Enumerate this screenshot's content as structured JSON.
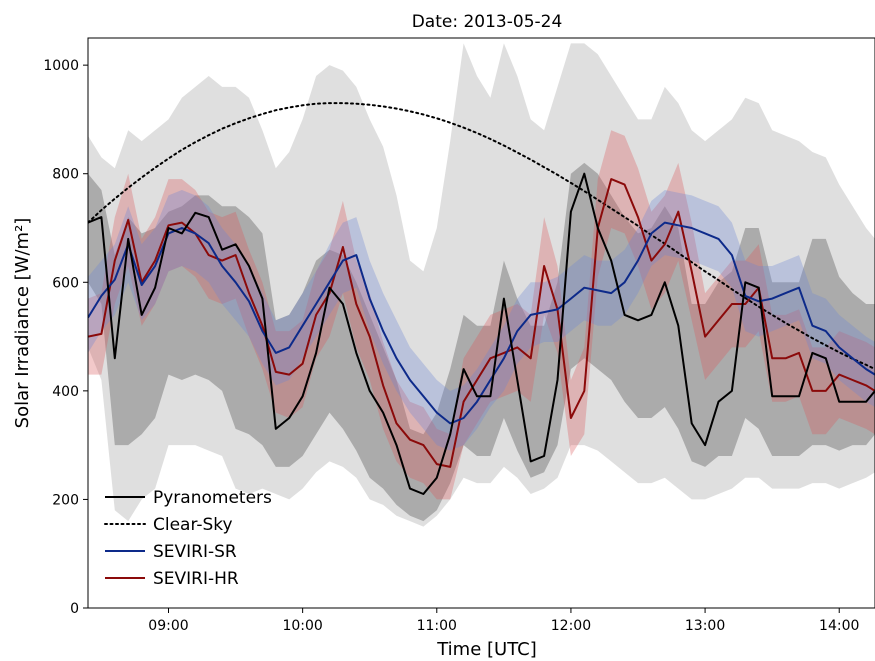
{
  "chart_data": {
    "type": "line",
    "title": "Date: 2013-05-24",
    "xlabel": "Time [UTC]",
    "ylabel": "Solar Irradiance [W/m²]",
    "xlim": [
      "08:24",
      "14:16"
    ],
    "ylim": [
      0,
      1050
    ],
    "x_ticks": [
      "09:00",
      "10:00",
      "11:00",
      "12:00",
      "13:00",
      "14:00"
    ],
    "y_ticks": [
      0,
      200,
      400,
      600,
      800,
      1000
    ],
    "legend_position": "lower-left",
    "x": [
      "08:24",
      "08:30",
      "08:36",
      "08:42",
      "08:48",
      "08:54",
      "09:00",
      "09:06",
      "09:12",
      "09:18",
      "09:24",
      "09:30",
      "09:36",
      "09:42",
      "09:48",
      "09:54",
      "10:00",
      "10:06",
      "10:12",
      "10:18",
      "10:24",
      "10:30",
      "10:36",
      "10:42",
      "10:48",
      "10:54",
      "11:00",
      "11:06",
      "11:12",
      "11:18",
      "11:24",
      "11:30",
      "11:36",
      "11:42",
      "11:48",
      "11:54",
      "12:00",
      "12:06",
      "12:12",
      "12:18",
      "12:24",
      "12:30",
      "12:36",
      "12:42",
      "12:48",
      "12:54",
      "13:00",
      "13:06",
      "13:12",
      "13:18",
      "13:24",
      "13:30",
      "13:36",
      "13:42",
      "13:48",
      "13:54",
      "14:00",
      "14:06",
      "14:12",
      "14:16"
    ],
    "series": [
      {
        "name": "Pyranometers",
        "style": "solid",
        "color": "#000000",
        "values": [
          710,
          720,
          460,
          680,
          540,
          590,
          700,
          690,
          728,
          720,
          660,
          670,
          630,
          570,
          330,
          350,
          390,
          470,
          590,
          560,
          470,
          400,
          360,
          300,
          220,
          210,
          240,
          320,
          440,
          390,
          390,
          570,
          420,
          270,
          280,
          420,
          730,
          800,
          700,
          640,
          540,
          530,
          540,
          600,
          520,
          340,
          300,
          380,
          400,
          600,
          590,
          390,
          390,
          390,
          470,
          460,
          380,
          380,
          380,
          400
        ],
        "band_inner": [
          [
            600,
            800
          ],
          [
            560,
            770
          ],
          [
            300,
            650
          ],
          [
            300,
            720
          ],
          [
            320,
            690
          ],
          [
            350,
            700
          ],
          [
            430,
            730
          ],
          [
            420,
            740
          ],
          [
            430,
            760
          ],
          [
            420,
            760
          ],
          [
            400,
            740
          ],
          [
            330,
            740
          ],
          [
            320,
            720
          ],
          [
            300,
            690
          ],
          [
            260,
            530
          ],
          [
            260,
            540
          ],
          [
            280,
            580
          ],
          [
            320,
            640
          ],
          [
            360,
            660
          ],
          [
            330,
            650
          ],
          [
            290,
            600
          ],
          [
            240,
            540
          ],
          [
            220,
            480
          ],
          [
            190,
            420
          ],
          [
            170,
            330
          ],
          [
            160,
            320
          ],
          [
            180,
            360
          ],
          [
            230,
            440
          ],
          [
            300,
            540
          ],
          [
            280,
            520
          ],
          [
            280,
            520
          ],
          [
            350,
            640
          ],
          [
            290,
            570
          ],
          [
            240,
            520
          ],
          [
            250,
            520
          ],
          [
            300,
            600
          ],
          [
            440,
            800
          ],
          [
            460,
            820
          ],
          [
            440,
            800
          ],
          [
            420,
            760
          ],
          [
            380,
            720
          ],
          [
            350,
            690
          ],
          [
            350,
            700
          ],
          [
            370,
            740
          ],
          [
            330,
            700
          ],
          [
            270,
            560
          ],
          [
            260,
            560
          ],
          [
            280,
            600
          ],
          [
            280,
            620
          ],
          [
            350,
            700
          ],
          [
            330,
            700
          ],
          [
            280,
            600
          ],
          [
            280,
            600
          ],
          [
            280,
            600
          ],
          [
            300,
            680
          ],
          [
            300,
            680
          ],
          [
            290,
            610
          ],
          [
            300,
            580
          ],
          [
            300,
            560
          ],
          [
            320,
            560
          ]
        ],
        "band_outer": [
          [
            480,
            870
          ],
          [
            420,
            830
          ],
          [
            180,
            810
          ],
          [
            160,
            880
          ],
          [
            200,
            860
          ],
          [
            220,
            880
          ],
          [
            300,
            900
          ],
          [
            300,
            940
          ],
          [
            300,
            960
          ],
          [
            290,
            980
          ],
          [
            280,
            960
          ],
          [
            220,
            960
          ],
          [
            210,
            940
          ],
          [
            220,
            880
          ],
          [
            210,
            810
          ],
          [
            200,
            840
          ],
          [
            220,
            900
          ],
          [
            250,
            980
          ],
          [
            270,
            1000
          ],
          [
            260,
            990
          ],
          [
            240,
            960
          ],
          [
            200,
            900
          ],
          [
            190,
            850
          ],
          [
            170,
            760
          ],
          [
            160,
            640
          ],
          [
            150,
            620
          ],
          [
            170,
            700
          ],
          [
            200,
            860
          ],
          [
            240,
            1040
          ],
          [
            230,
            980
          ],
          [
            230,
            940
          ],
          [
            260,
            1040
          ],
          [
            240,
            980
          ],
          [
            210,
            900
          ],
          [
            220,
            880
          ],
          [
            240,
            960
          ],
          [
            300,
            1040
          ],
          [
            300,
            1040
          ],
          [
            290,
            1020
          ],
          [
            270,
            980
          ],
          [
            250,
            940
          ],
          [
            230,
            900
          ],
          [
            230,
            900
          ],
          [
            240,
            960
          ],
          [
            220,
            930
          ],
          [
            200,
            880
          ],
          [
            200,
            860
          ],
          [
            210,
            880
          ],
          [
            220,
            900
          ],
          [
            240,
            940
          ],
          [
            240,
            930
          ],
          [
            220,
            880
          ],
          [
            220,
            870
          ],
          [
            220,
            860
          ],
          [
            230,
            840
          ],
          [
            230,
            830
          ],
          [
            220,
            780
          ],
          [
            230,
            740
          ],
          [
            240,
            700
          ],
          [
            250,
            680
          ]
        ]
      },
      {
        "name": "Clear-Sky",
        "style": "dotted",
        "color": "#000000",
        "values": [
          710,
          733,
          754,
          774,
          793,
          811,
          828,
          844,
          858,
          871,
          883,
          893,
          902,
          910,
          917,
          922,
          926,
          929,
          930,
          930,
          929,
          927,
          924,
          920,
          915,
          909,
          902,
          894,
          885,
          875,
          864,
          852,
          839,
          826,
          812,
          798,
          783,
          768,
          752,
          736,
          720,
          704,
          687,
          671,
          654,
          637,
          620,
          604,
          587,
          571,
          555,
          540,
          525,
          511,
          497,
          484,
          471,
          459,
          448,
          440
        ]
      },
      {
        "name": "SEVIRI-SR",
        "style": "solid",
        "color": "#0d2a8a",
        "values": [
          535,
          575,
          605,
          670,
          595,
          630,
          690,
          700,
          690,
          672,
          630,
          600,
          565,
          510,
          470,
          480,
          520,
          560,
          600,
          640,
          650,
          570,
          510,
          460,
          420,
          390,
          360,
          340,
          350,
          380,
          420,
          460,
          510,
          540,
          545,
          550,
          570,
          590,
          585,
          580,
          600,
          640,
          690,
          710,
          705,
          700,
          690,
          680,
          650,
          575,
          565,
          570,
          580,
          590,
          520,
          510,
          480,
          460,
          440,
          430
        ],
        "band": [
          [
            470,
            610
          ],
          [
            510,
            640
          ],
          [
            540,
            670
          ],
          [
            600,
            740
          ],
          [
            530,
            670
          ],
          [
            560,
            700
          ],
          [
            620,
            760
          ],
          [
            630,
            770
          ],
          [
            620,
            760
          ],
          [
            600,
            740
          ],
          [
            560,
            700
          ],
          [
            530,
            670
          ],
          [
            500,
            630
          ],
          [
            450,
            580
          ],
          [
            410,
            530
          ],
          [
            420,
            540
          ],
          [
            460,
            580
          ],
          [
            500,
            620
          ],
          [
            540,
            670
          ],
          [
            580,
            710
          ],
          [
            590,
            720
          ],
          [
            510,
            640
          ],
          [
            450,
            580
          ],
          [
            400,
            530
          ],
          [
            360,
            480
          ],
          [
            330,
            450
          ],
          [
            300,
            420
          ],
          [
            290,
            400
          ],
          [
            300,
            410
          ],
          [
            330,
            440
          ],
          [
            370,
            480
          ],
          [
            400,
            520
          ],
          [
            450,
            570
          ],
          [
            480,
            600
          ],
          [
            490,
            600
          ],
          [
            490,
            610
          ],
          [
            510,
            630
          ],
          [
            530,
            650
          ],
          [
            520,
            640
          ],
          [
            520,
            640
          ],
          [
            540,
            660
          ],
          [
            580,
            700
          ],
          [
            630,
            750
          ],
          [
            650,
            770
          ],
          [
            645,
            765
          ],
          [
            640,
            760
          ],
          [
            630,
            750
          ],
          [
            620,
            740
          ],
          [
            590,
            710
          ],
          [
            510,
            640
          ],
          [
            500,
            630
          ],
          [
            510,
            630
          ],
          [
            520,
            640
          ],
          [
            530,
            650
          ],
          [
            460,
            580
          ],
          [
            450,
            570
          ],
          [
            420,
            540
          ],
          [
            400,
            520
          ],
          [
            380,
            500
          ],
          [
            370,
            490
          ]
        ]
      },
      {
        "name": "SEVIRI-HR",
        "style": "solid",
        "color": "#8b0a0a",
        "values": [
          500,
          505,
          640,
          715,
          600,
          640,
          705,
          710,
          690,
          650,
          640,
          650,
          580,
          520,
          435,
          430,
          450,
          540,
          580,
          665,
          560,
          500,
          410,
          340,
          310,
          300,
          265,
          260,
          380,
          420,
          460,
          470,
          480,
          460,
          630,
          550,
          350,
          400,
          700,
          790,
          780,
          720,
          640,
          670,
          730,
          620,
          500,
          530,
          560,
          560,
          590,
          460,
          460,
          470,
          400,
          400,
          430,
          420,
          410,
          400
        ],
        "band": [
          [
            430,
            570
          ],
          [
            430,
            580
          ],
          [
            560,
            720
          ],
          [
            630,
            800
          ],
          [
            520,
            680
          ],
          [
            560,
            720
          ],
          [
            620,
            790
          ],
          [
            630,
            790
          ],
          [
            610,
            770
          ],
          [
            570,
            730
          ],
          [
            560,
            720
          ],
          [
            570,
            730
          ],
          [
            500,
            660
          ],
          [
            440,
            600
          ],
          [
            360,
            510
          ],
          [
            350,
            510
          ],
          [
            370,
            530
          ],
          [
            460,
            620
          ],
          [
            500,
            660
          ],
          [
            580,
            750
          ],
          [
            480,
            640
          ],
          [
            420,
            580
          ],
          [
            330,
            490
          ],
          [
            270,
            420
          ],
          [
            240,
            380
          ],
          [
            230,
            370
          ],
          [
            200,
            330
          ],
          [
            200,
            320
          ],
          [
            300,
            460
          ],
          [
            340,
            500
          ],
          [
            380,
            540
          ],
          [
            390,
            550
          ],
          [
            400,
            560
          ],
          [
            380,
            540
          ],
          [
            540,
            720
          ],
          [
            470,
            630
          ],
          [
            280,
            420
          ],
          [
            320,
            480
          ],
          [
            610,
            790
          ],
          [
            700,
            880
          ],
          [
            690,
            870
          ],
          [
            630,
            810
          ],
          [
            550,
            730
          ],
          [
            580,
            760
          ],
          [
            640,
            820
          ],
          [
            530,
            710
          ],
          [
            420,
            580
          ],
          [
            450,
            610
          ],
          [
            480,
            640
          ],
          [
            480,
            640
          ],
          [
            510,
            670
          ],
          [
            380,
            540
          ],
          [
            380,
            540
          ],
          [
            390,
            550
          ],
          [
            320,
            480
          ],
          [
            320,
            480
          ],
          [
            350,
            510
          ],
          [
            340,
            500
          ],
          [
            330,
            490
          ],
          [
            320,
            480
          ]
        ]
      }
    ]
  }
}
